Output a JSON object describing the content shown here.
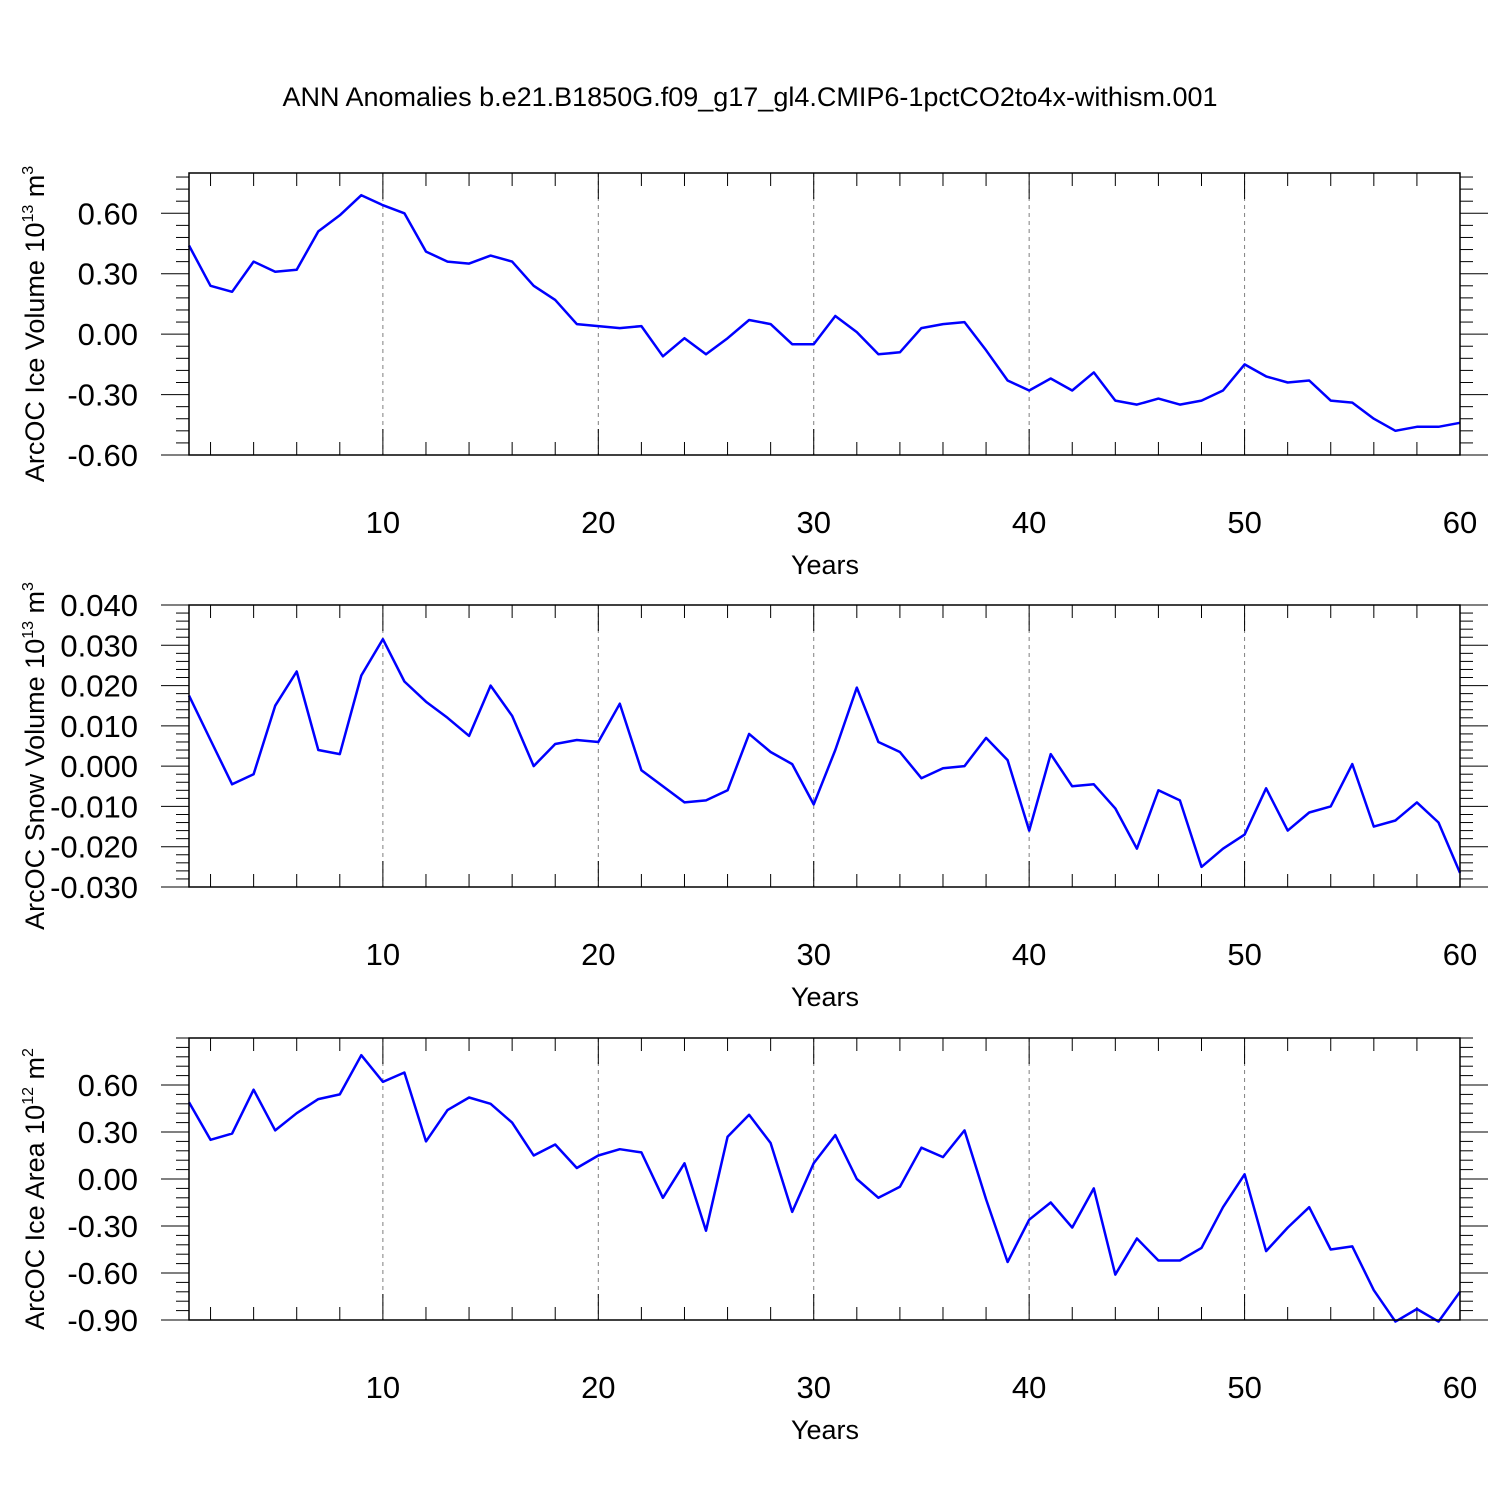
{
  "title": "ANN Anomalies b.e21.B1850G.f09_g17_gl4.CMIP6-1pctCO2to4x-withism.001",
  "colors": {
    "line": "#0000ff",
    "axis": "#000000",
    "grid": "#808080",
    "background": "#ffffff"
  },
  "chart_data": [
    {
      "type": "line",
      "ylabel": {
        "text": "ArcOC Ice Volume 10",
        "exponent": "13",
        "unit": " m",
        "unit_exponent": "3"
      },
      "xlabel": "Years",
      "xlim": [
        1,
        60
      ],
      "ylim": [
        -0.6,
        0.8
      ],
      "x_ticks": [
        10,
        20,
        30,
        40,
        50,
        60
      ],
      "y_ticks": [
        -0.6,
        -0.3,
        0.0,
        0.3,
        0.6
      ],
      "y_tick_labels": [
        "-0.60",
        "-0.30",
        "0.00",
        "0.30",
        "0.60"
      ],
      "grid": "vertical dashed at major x ticks",
      "x": [
        1,
        2,
        3,
        4,
        5,
        6,
        7,
        8,
        9,
        10,
        11,
        12,
        13,
        14,
        15,
        16,
        17,
        18,
        19,
        20,
        21,
        22,
        23,
        24,
        25,
        26,
        27,
        28,
        29,
        30,
        31,
        32,
        33,
        34,
        35,
        36,
        37,
        38,
        39,
        40,
        41,
        42,
        43,
        44,
        45,
        46,
        47,
        48,
        49,
        50,
        51,
        52,
        53,
        54,
        55,
        56,
        57,
        58,
        59,
        60
      ],
      "values": [
        0.44,
        0.24,
        0.21,
        0.36,
        0.31,
        0.32,
        0.51,
        0.59,
        0.69,
        0.64,
        0.6,
        0.41,
        0.36,
        0.35,
        0.39,
        0.36,
        0.24,
        0.17,
        0.05,
        0.04,
        0.03,
        0.04,
        -0.11,
        -0.02,
        -0.1,
        -0.02,
        0.07,
        0.05,
        -0.05,
        -0.05,
        0.09,
        0.01,
        -0.1,
        -0.09,
        0.03,
        0.05,
        0.06,
        -0.08,
        -0.23,
        -0.28,
        -0.22,
        -0.28,
        -0.19,
        -0.33,
        -0.35,
        -0.32,
        -0.35,
        -0.33,
        -0.28,
        -0.15,
        -0.21,
        -0.24,
        -0.23,
        -0.33,
        -0.34,
        -0.42,
        -0.48,
        -0.46,
        -0.46,
        -0.44
      ]
    },
    {
      "type": "line",
      "ylabel": {
        "text": "ArcOC Snow Volume 10",
        "exponent": "13",
        "unit": " m",
        "unit_exponent": "3"
      },
      "xlabel": "Years",
      "xlim": [
        1,
        60
      ],
      "ylim": [
        -0.03,
        0.04
      ],
      "x_ticks": [
        10,
        20,
        30,
        40,
        50,
        60
      ],
      "y_ticks": [
        -0.03,
        -0.02,
        -0.01,
        0.0,
        0.01,
        0.02,
        0.03,
        0.04
      ],
      "y_tick_labels": [
        "-0.030",
        "-0.020",
        "-0.010",
        "0.000",
        "0.010",
        "0.020",
        "0.030",
        "0.040"
      ],
      "grid": "vertical dashed at major x ticks",
      "x": [
        1,
        2,
        3,
        4,
        5,
        6,
        7,
        8,
        9,
        10,
        11,
        12,
        13,
        14,
        15,
        16,
        17,
        18,
        19,
        20,
        21,
        22,
        23,
        24,
        25,
        26,
        27,
        28,
        29,
        30,
        31,
        32,
        33,
        34,
        35,
        36,
        37,
        38,
        39,
        40,
        41,
        42,
        43,
        44,
        45,
        46,
        47,
        48,
        49,
        50,
        51,
        52,
        53,
        54,
        55,
        56,
        57,
        58,
        59,
        60
      ],
      "values": [
        0.0175,
        0.0065,
        -0.0045,
        -0.002,
        0.015,
        0.0235,
        0.004,
        0.003,
        0.0225,
        0.0315,
        0.021,
        0.016,
        0.012,
        0.0075,
        0.02,
        0.0125,
        0.0,
        0.0055,
        0.0065,
        0.006,
        0.0155,
        -0.001,
        -0.005,
        -0.009,
        -0.0085,
        -0.006,
        0.008,
        0.0035,
        0.0005,
        -0.0095,
        0.004,
        0.0195,
        0.006,
        0.0035,
        -0.003,
        -0.0005,
        0.0,
        0.007,
        0.0015,
        -0.016,
        0.003,
        -0.005,
        -0.0045,
        -0.0105,
        -0.0205,
        -0.006,
        -0.0085,
        -0.025,
        -0.0205,
        -0.017,
        -0.0055,
        -0.016,
        -0.0115,
        -0.01,
        0.0005,
        -0.015,
        -0.0135,
        -0.009,
        -0.014,
        -0.0265
      ]
    },
    {
      "type": "line",
      "ylabel": {
        "text": "ArcOC Ice Area 10",
        "exponent": "12",
        "unit": " m",
        "unit_exponent": "2"
      },
      "xlabel": "Years",
      "xlim": [
        1,
        60
      ],
      "ylim": [
        -0.9,
        0.9
      ],
      "x_ticks": [
        10,
        20,
        30,
        40,
        50,
        60
      ],
      "y_ticks": [
        -0.9,
        -0.6,
        -0.3,
        0.0,
        0.3,
        0.6
      ],
      "y_tick_labels": [
        "-0.90",
        "-0.60",
        "-0.30",
        "0.00",
        "0.30",
        "0.60"
      ],
      "grid": "vertical dashed at major x ticks",
      "x": [
        1,
        2,
        3,
        4,
        5,
        6,
        7,
        8,
        9,
        10,
        11,
        12,
        13,
        14,
        15,
        16,
        17,
        18,
        19,
        20,
        21,
        22,
        23,
        24,
        25,
        26,
        27,
        28,
        29,
        30,
        31,
        32,
        33,
        34,
        35,
        36,
        37,
        38,
        39,
        40,
        41,
        42,
        43,
        44,
        45,
        46,
        47,
        48,
        49,
        50,
        51,
        52,
        53,
        54,
        55,
        56,
        57,
        58,
        59,
        60
      ],
      "values": [
        0.49,
        0.25,
        0.29,
        0.57,
        0.31,
        0.42,
        0.51,
        0.54,
        0.79,
        0.62,
        0.68,
        0.24,
        0.44,
        0.52,
        0.48,
        0.36,
        0.15,
        0.22,
        0.07,
        0.15,
        0.19,
        0.17,
        -0.12,
        0.1,
        -0.33,
        0.27,
        0.41,
        0.23,
        -0.21,
        0.1,
        0.28,
        0.0,
        -0.12,
        -0.05,
        0.2,
        0.14,
        0.31,
        -0.13,
        -0.53,
        -0.26,
        -0.15,
        -0.31,
        -0.06,
        -0.61,
        -0.38,
        -0.52,
        -0.52,
        -0.44,
        -0.18,
        0.03,
        -0.46,
        -0.31,
        -0.18,
        -0.45,
        -0.43,
        -0.71,
        -0.91,
        -0.83,
        -0.91,
        -0.72
      ]
    }
  ]
}
